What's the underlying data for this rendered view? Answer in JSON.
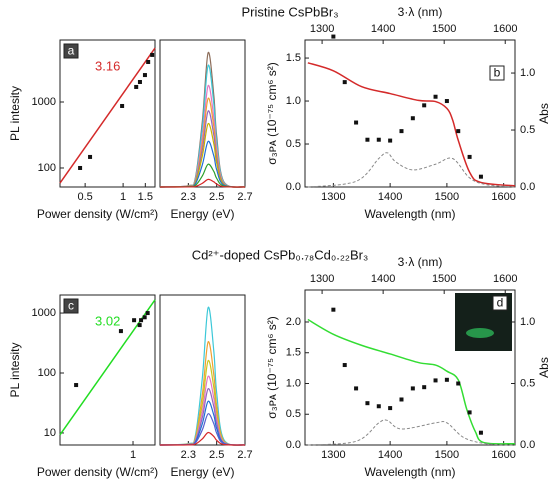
{
  "titles": [
    "Pristine CsPbBr₃",
    "Cd²⁺-doped CsPb₀.₇₈Cd₀.₂₂Br₃"
  ],
  "chart_data": [
    {
      "type": "scatter",
      "label": "a",
      "annotation": "3.16",
      "color": "#d42a2a",
      "log": true,
      "xlabel": "Power density (W/cm²)",
      "ylabel": "PL intesity",
      "x": [
        0.456,
        0.547,
        0.982,
        1.27,
        1.36,
        1.49,
        1.58,
        1.7
      ],
      "values": [
        100,
        147,
        870,
        1690,
        2010,
        2560,
        4040,
        5170
      ],
      "fit": {
        "x": [
          0.316,
          1.79
        ],
        "values": [
          59,
          6570
        ]
      },
      "xlim": [
        0.316,
        1.79
      ],
      "ylim": [
        51.5,
        8700
      ],
      "xticks": [
        0.5,
        1,
        1.5
      ],
      "yticks": [
        100,
        1000
      ]
    },
    {
      "type": "line",
      "xlabel": "Energy (eV)",
      "x": [
        2.1,
        2.3,
        2.35,
        2.4,
        2.44,
        2.48,
        2.5,
        2.55,
        2.7
      ],
      "xlim": [
        2.1,
        2.7
      ],
      "ylim": [
        0,
        5800
      ],
      "xticks": [
        2.3,
        2.5,
        2.7
      ],
      "series": [
        {
          "color": "#8c6d5a",
          "values": [
            0,
            53,
            371,
            2650,
            5300,
            3604,
            2014,
            212,
            0
          ]
        },
        {
          "color": "#3cc8d8",
          "values": [
            0,
            48,
            336,
            2400,
            4800,
            3264,
            1824,
            192,
            0
          ]
        },
        {
          "color": "#e377c2",
          "values": [
            0,
            40,
            280,
            2000,
            4000,
            2720,
            1520,
            160,
            0
          ]
        },
        {
          "color": "#f0a030",
          "values": [
            0,
            35,
            245,
            1750,
            3500,
            2380,
            1330,
            140,
            0
          ]
        },
        {
          "color": "#9467bd",
          "values": [
            0,
            30,
            210,
            1500,
            3000,
            2040,
            1140,
            120,
            0
          ]
        },
        {
          "color": "#c8b400",
          "values": [
            0,
            25,
            175,
            1250,
            2500,
            1700,
            950,
            100,
            0
          ]
        },
        {
          "color": "#1f6fd4",
          "values": [
            0,
            18,
            126,
            900,
            1800,
            1224,
            684,
            72,
            0
          ]
        },
        {
          "color": "#2ca02c",
          "values": [
            0,
            9,
            63,
            450,
            900,
            612,
            342,
            36,
            0
          ]
        },
        {
          "color": "#d62728",
          "values": [
            0,
            3,
            21,
            150,
            300,
            204,
            114,
            12,
            0
          ]
        }
      ]
    },
    {
      "type": "combo",
      "label": "b",
      "xlabel": "Wavelength (nm)",
      "ylabel": "σ₃ᴘᴀ (10⁻⁷⁵ cm⁶ s²)",
      "y2label": "Abs",
      "toplabel": "3·λ (nm)",
      "xlim": [
        1250,
        1620
      ],
      "xticks": [
        1300,
        1400,
        1500,
        1600
      ],
      "topxlim": [
        1272,
        1616
      ],
      "topxticks": [
        1300,
        1400,
        1500,
        1600
      ],
      "ylim": [
        0,
        1.71
      ],
      "yticks": [
        {
          "value": 0,
          "label": "0.0"
        },
        0.5,
        {
          "value": 1,
          "label": "1.0"
        },
        1.5
      ],
      "y2lim": [
        0,
        1.29
      ],
      "y2ticks": [
        {
          "value": 0,
          "label": "0.0"
        },
        0.5,
        {
          "value": 1,
          "label": "1.0"
        }
      ],
      "scatter": {
        "x": [
          1300,
          1320,
          1340,
          1360,
          1380,
          1400,
          1420,
          1440,
          1460,
          1480,
          1500,
          1520,
          1540,
          1560
        ],
        "values": [
          1.75,
          1.22,
          0.75,
          0.55,
          0.55,
          0.54,
          0.65,
          0.8,
          0.95,
          1.05,
          1.0,
          0.65,
          0.35,
          0.12
        ]
      },
      "series": [
        {
          "color": "#d42a2a",
          "axis": "y2",
          "x": [
            1255,
            1300,
            1350,
            1400,
            1450,
            1480,
            1500,
            1510,
            1520,
            1540,
            1560,
            1620
          ],
          "values": [
            1.09,
            1.02,
            0.88,
            0.82,
            0.76,
            0.75,
            0.69,
            0.59,
            0.41,
            0.13,
            0.04,
            0.01
          ]
        },
        {
          "color": "#888888",
          "dash": true,
          "axis": "y2",
          "x": [
            1255,
            1340,
            1380,
            1395,
            1410,
            1440,
            1480,
            1510,
            1540,
            1570,
            1620
          ],
          "values": [
            0,
            0.05,
            0.25,
            0.3,
            0.22,
            0.15,
            0.2,
            0.25,
            0.08,
            0.02,
            0
          ]
        }
      ]
    },
    {
      "type": "scatter",
      "label": "c",
      "annotation": "3.02",
      "color": "#22dd22",
      "log": true,
      "xlabel": "Power density (W/cm²)",
      "ylabel": "PL intesity",
      "x": [
        0.35,
        0.8,
        1.02,
        1.13,
        1.16,
        1.24,
        1.31
      ],
      "values": [
        63,
        500,
        760,
        630,
        760,
        850,
        1000
      ],
      "fit": {
        "x": [
          0.26,
          1.5
        ],
        "values": [
          9.3,
          1660
        ]
      },
      "xlim": [
        0.26,
        1.5
      ],
      "ylim": [
        6.3,
        2000
      ],
      "xticks": [
        1
      ],
      "yticks": [
        10,
        100,
        1000
      ]
    },
    {
      "type": "line",
      "xlabel": "Energy (eV)",
      "x": [
        2.1,
        2.3,
        2.35,
        2.4,
        2.44,
        2.48,
        2.5,
        2.55,
        2.7
      ],
      "xlim": [
        2.1,
        2.7
      ],
      "ylim": [
        0,
        4800
      ],
      "xticks": [
        2.3,
        2.5,
        2.7
      ],
      "series": [
        {
          "color": "#3cc8d8",
          "values": [
            0,
            44,
            308,
            2200,
            4400,
            2992,
            1672,
            176,
            0
          ]
        },
        {
          "color": "#f0a030",
          "values": [
            0,
            33,
            231,
            1650,
            3300,
            2244,
            1254,
            132,
            0
          ]
        },
        {
          "color": "#c8c820",
          "values": [
            0,
            27,
            189,
            1350,
            2700,
            1836,
            1026,
            108,
            0
          ]
        },
        {
          "color": "#e377c2",
          "values": [
            0,
            22,
            154,
            1100,
            2200,
            1496,
            836,
            88,
            0
          ]
        },
        {
          "color": "#9467bd",
          "values": [
            0,
            18,
            126,
            900,
            1800,
            1224,
            684,
            72,
            0
          ]
        },
        {
          "color": "#1f6fd4",
          "values": [
            0,
            14,
            98,
            700,
            1400,
            952,
            532,
            56,
            0
          ]
        },
        {
          "color": "#5560d0",
          "values": [
            0,
            10,
            70,
            500,
            1000,
            680,
            380,
            40,
            0
          ]
        },
        {
          "color": "#d62728",
          "values": [
            0,
            4,
            28,
            200,
            400,
            272,
            152,
            16,
            0
          ]
        }
      ]
    },
    {
      "type": "combo",
      "label": "d",
      "xlabel": "Wavelength (nm)",
      "ylabel": "σ₃ᴘᴀ (10⁻⁷⁵ cm⁶ s²)",
      "y2label": "Abs",
      "toplabel": "3·λ (nm)",
      "xlim": [
        1250,
        1620
      ],
      "xticks": [
        1300,
        1400,
        1500,
        1600
      ],
      "topxlim": [
        1272,
        1616
      ],
      "topxticks": [
        1300,
        1400,
        1500,
        1600
      ],
      "ylim": [
        0,
        2.52
      ],
      "yticks": [
        {
          "value": 0,
          "label": "0.0"
        },
        0.5,
        {
          "value": 1,
          "label": "1.0"
        },
        1.5,
        {
          "value": 2,
          "label": "2.0"
        }
      ],
      "y2lim": [
        0,
        1.26
      ],
      "y2ticks": [
        {
          "value": 0,
          "label": "0.0"
        },
        0.5,
        {
          "value": 1,
          "label": "1.0"
        }
      ],
      "scatter": {
        "x": [
          1300,
          1320,
          1340,
          1360,
          1380,
          1400,
          1420,
          1440,
          1460,
          1480,
          1500,
          1520,
          1540,
          1560
        ],
        "values": [
          2.2,
          1.3,
          0.92,
          0.68,
          0.63,
          0.6,
          0.74,
          0.92,
          0.94,
          1.05,
          1.06,
          1.0,
          0.53,
          0.2
        ]
      },
      "series": [
        {
          "color": "#33dd33",
          "axis": "y2",
          "x": [
            1255,
            1300,
            1350,
            1400,
            1450,
            1480,
            1500,
            1520,
            1535,
            1550,
            1565,
            1620
          ],
          "values": [
            1.02,
            0.9,
            0.81,
            0.74,
            0.67,
            0.65,
            0.6,
            0.53,
            0.29,
            0.11,
            0.02,
            0.01
          ]
        },
        {
          "color": "#888888",
          "dash": true,
          "axis": "y2",
          "x": [
            1255,
            1340,
            1380,
            1395,
            1420,
            1480,
            1500,
            1530,
            1570,
            1620
          ],
          "values": [
            0,
            0.03,
            0.18,
            0.2,
            0.13,
            0.18,
            0.18,
            0.06,
            0.01,
            0
          ]
        }
      ]
    }
  ]
}
